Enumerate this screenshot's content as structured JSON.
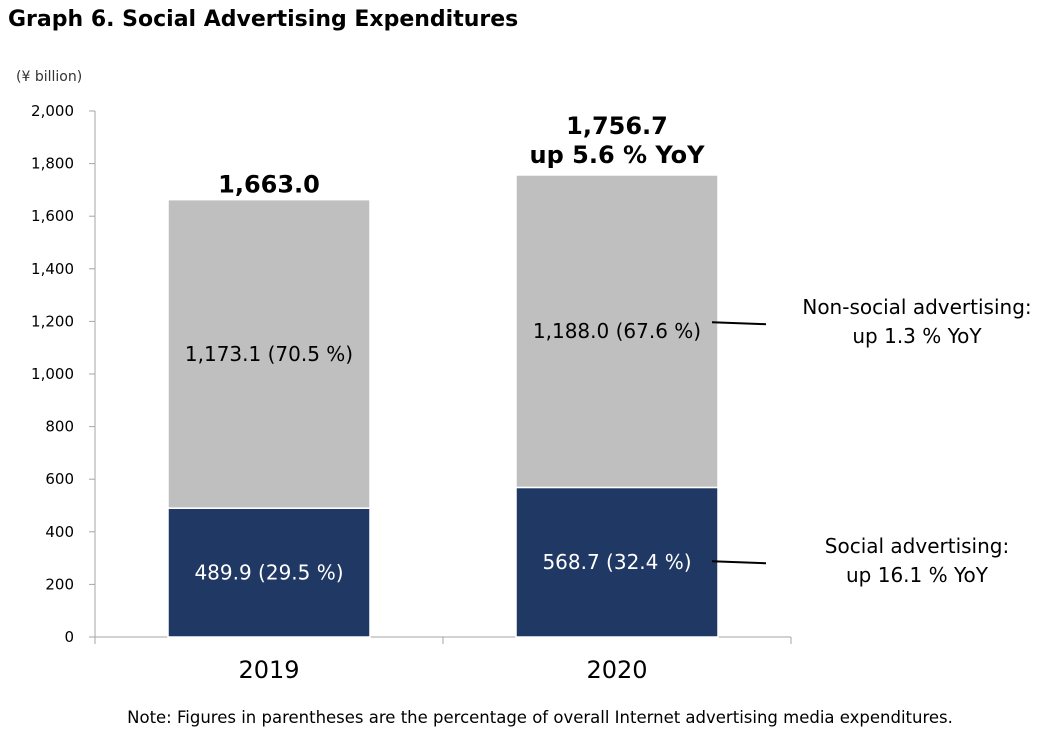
{
  "title": "Graph 6. Social Advertising Expenditures",
  "unit_label": "(¥ billion)",
  "note": "Note: Figures in parentheses are the percentage of overall Internet advertising media expenditures.",
  "colors": {
    "social": "#203864",
    "non_social": "#bfbfbf",
    "axis": "#a6a6a6"
  },
  "chart_data": {
    "type": "bar",
    "stacked": true,
    "categories": [
      "2019",
      "2020"
    ],
    "ylim": [
      0,
      2000
    ],
    "ytick_step": 200,
    "yticks": [
      "0",
      "200",
      "400",
      "600",
      "800",
      "1,000",
      "1,200",
      "1,400",
      "1,600",
      "1,800",
      "2,000"
    ],
    "series": [
      {
        "key": "social",
        "values": [
          489.9,
          568.7
        ],
        "labels": [
          "489.9 (29.5 %)",
          "568.7 (32.4 %)"
        ]
      },
      {
        "key": "non_social",
        "values": [
          1173.1,
          1188.0
        ],
        "labels": [
          "1,173.1 (70.5 %)",
          "1,188.0 (67.6 %)"
        ]
      }
    ],
    "totals": [
      {
        "line1": "1,663.0",
        "line2": ""
      },
      {
        "line1": "1,756.7",
        "line2": "up 5.6 % YoY"
      }
    ],
    "annotations": [
      {
        "series": "non_social",
        "line1": "Non-social advertising:",
        "line2": "up 1.3 % YoY"
      },
      {
        "series": "social",
        "line1": "Social advertising:",
        "line2": "up 16.1 % YoY"
      }
    ],
    "grid": false,
    "legend": "none"
  }
}
